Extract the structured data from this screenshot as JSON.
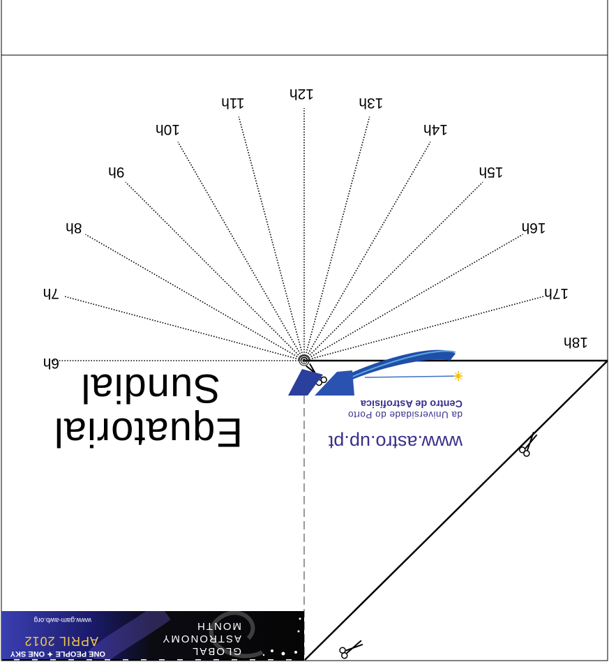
{
  "title": {
    "line1": "Equatorial",
    "line2": "Sundial"
  },
  "hour_labels": [
    "6h",
    "7h",
    "8h",
    "9h",
    "10h",
    "11h",
    "12h",
    "13h",
    "14h",
    "15h",
    "16h",
    "17h",
    "18h"
  ],
  "centro": {
    "name": "Centro de Astrofísica",
    "subtitle": "da Universidade do Porto",
    "url": "www.astro.up.pt",
    "color": "#3a2f8c",
    "swoosh_color": "#1f4fa8"
  },
  "gam": {
    "line_global": "GLOBAL",
    "line_astronomy": "ASTRONOMY",
    "line_month": "MONTH",
    "date": "APRIL 2012",
    "motto": "ONE PEOPLE ✦ ONE SKY",
    "url": "www.gam-awb.org",
    "accent_color": "#f2c94c",
    "band_color": "#3a3fb0"
  },
  "icons": [
    "scissors-icon",
    "logo-star-icon"
  ]
}
